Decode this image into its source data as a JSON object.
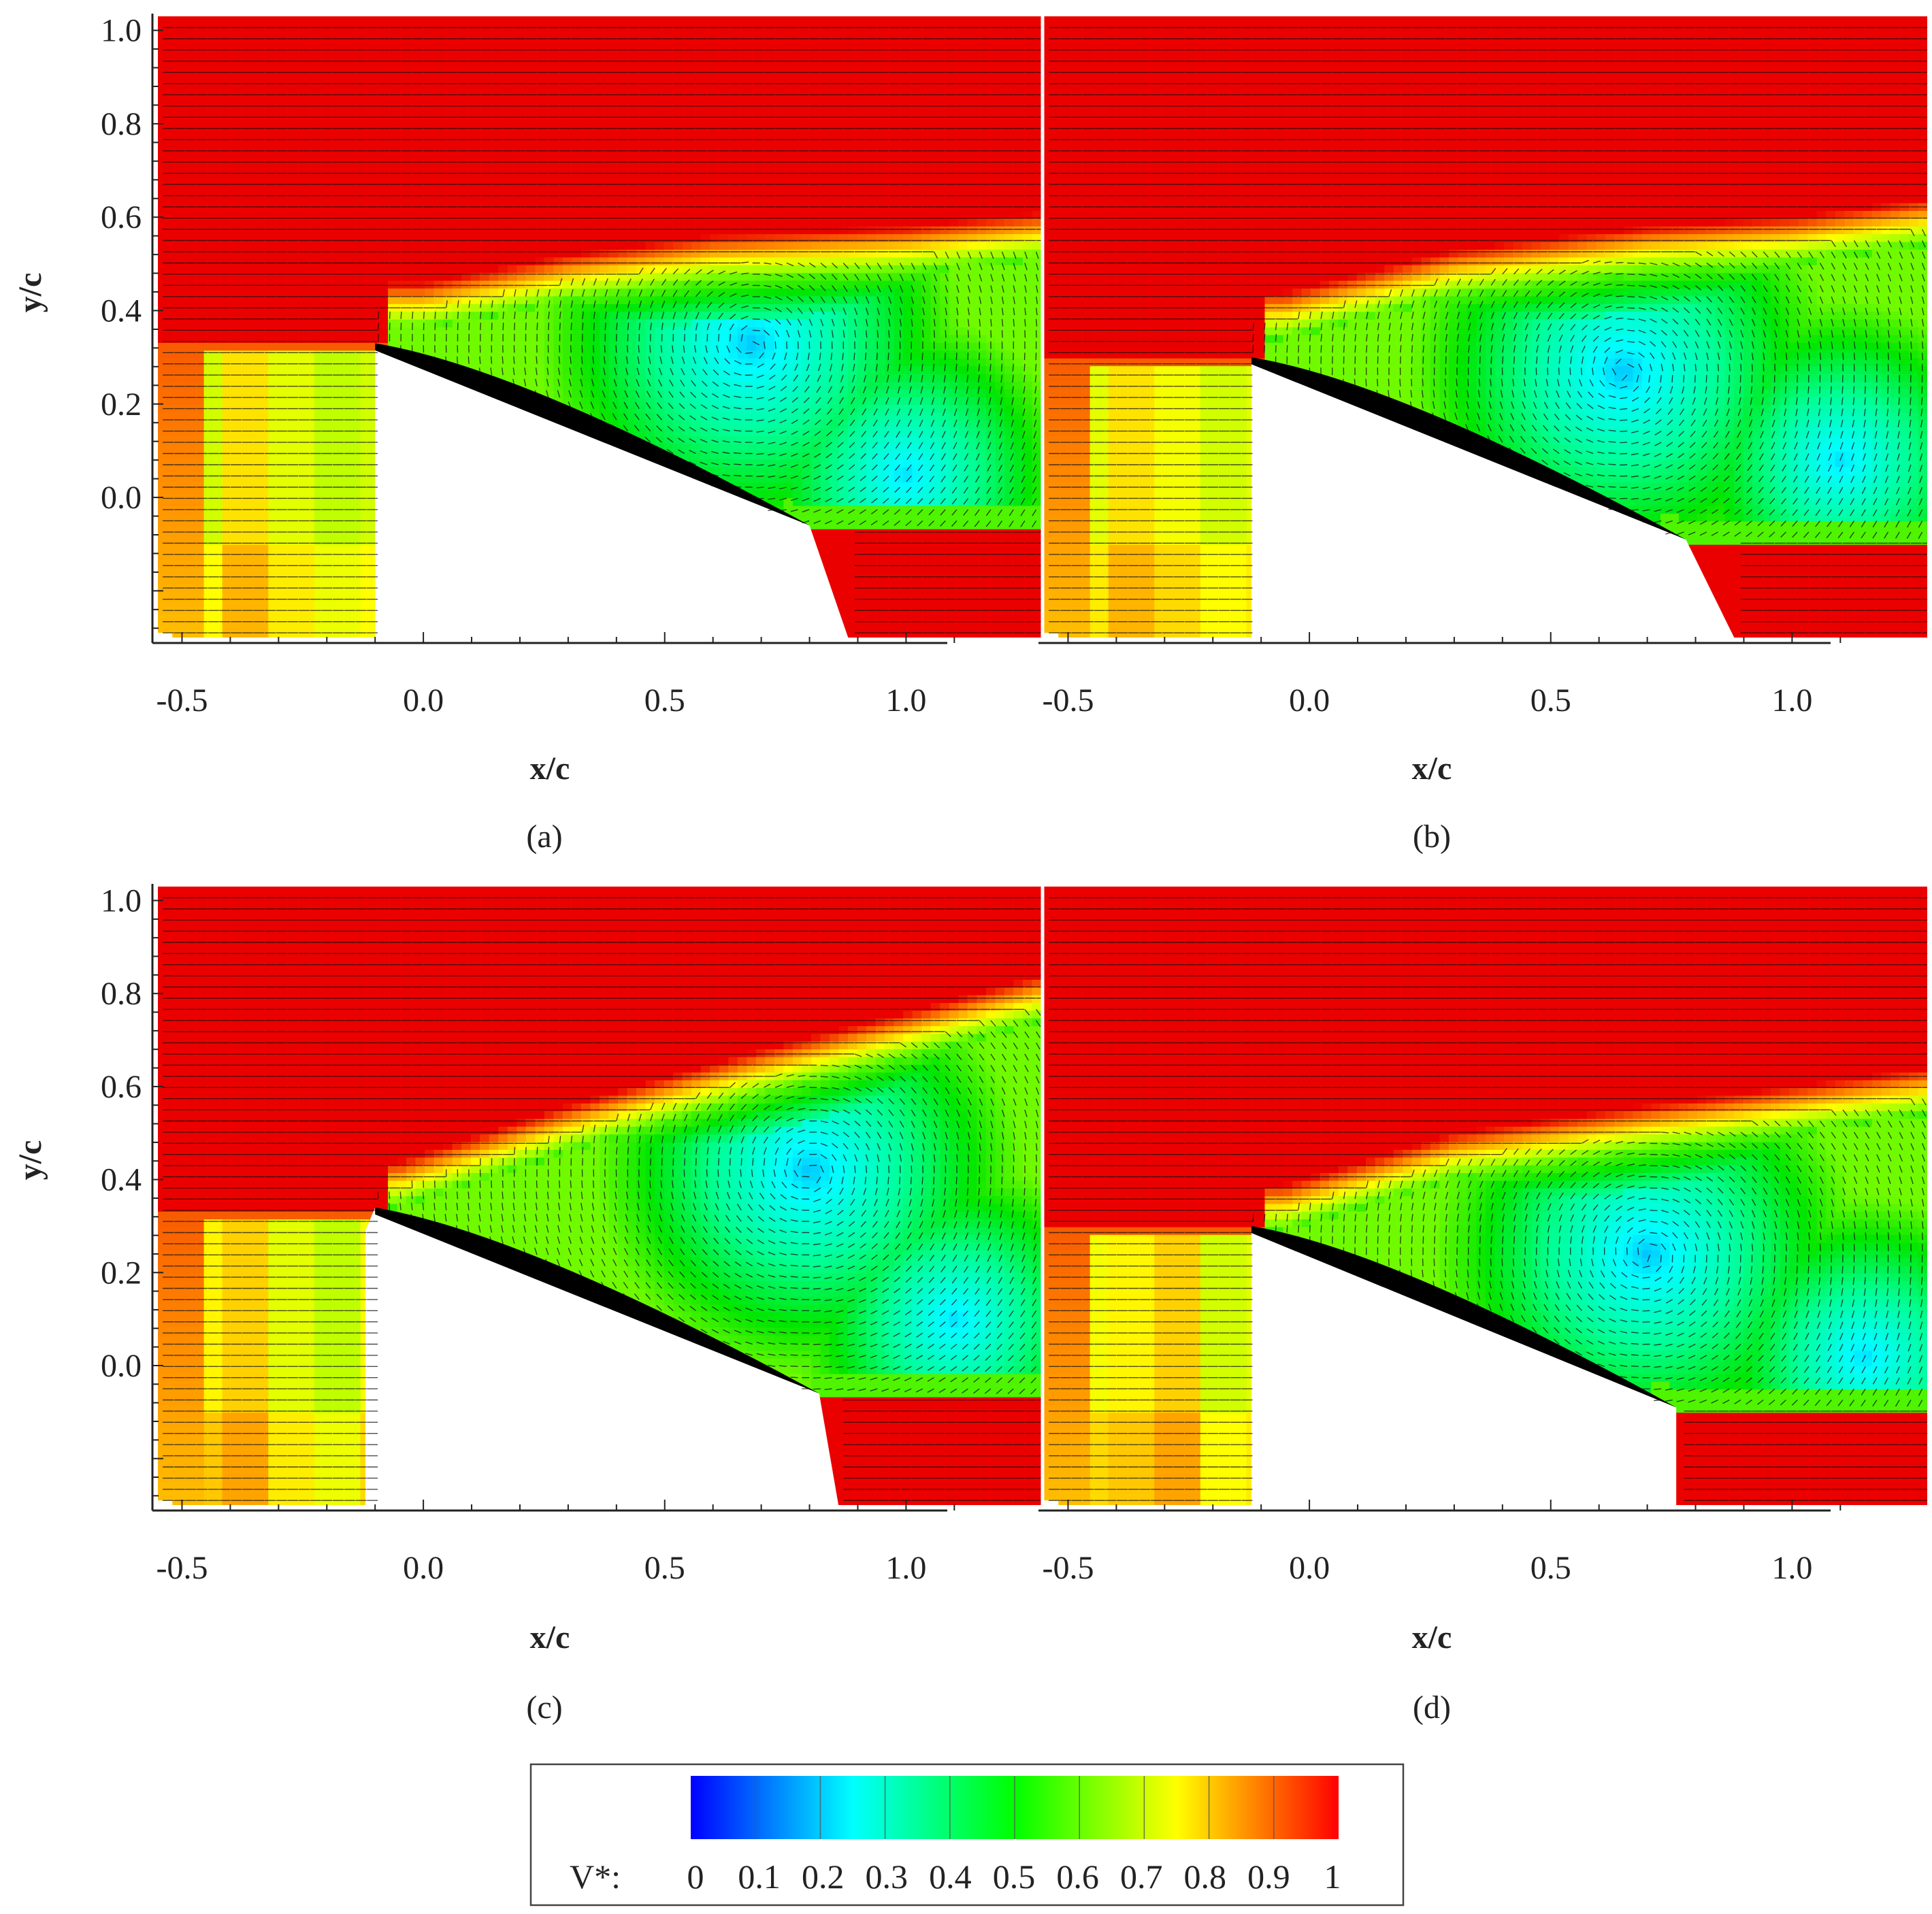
{
  "figure": {
    "panels": [
      {
        "id": "a",
        "caption": "(a)"
      },
      {
        "id": "b",
        "caption": "(b)"
      },
      {
        "id": "c",
        "caption": "(c)"
      },
      {
        "id": "d",
        "caption": "(d)"
      }
    ]
  },
  "chart_data": [
    {
      "type": "heatmap",
      "panel": "a",
      "caption": "(a)",
      "xlabel": "x/c",
      "ylabel": "y/c",
      "xlim": [
        -0.55,
        1.28
      ],
      "ylim": [
        -0.3,
        1.03
      ],
      "xticks": [
        "-0.5",
        "0.0",
        "0.5",
        "1.0"
      ],
      "xtick_values": [
        -0.5,
        0.0,
        0.5,
        1.0
      ],
      "yticks": [
        "0.0",
        "0.2",
        "0.4",
        "0.6",
        "0.8",
        "1.0"
      ],
      "ytick_values": [
        0.0,
        0.2,
        0.4,
        0.6,
        0.8,
        1.0
      ],
      "show_ylabel": true,
      "airfoil": {
        "leading_edge": [
          -0.1,
          0.33
        ],
        "trailing_edge": [
          0.8,
          -0.06
        ]
      },
      "wake_top": [
        [
          0.0,
          0.4
        ],
        [
          0.3,
          0.46
        ],
        [
          0.6,
          0.5
        ],
        [
          1.0,
          0.52
        ],
        [
          1.28,
          0.55
        ]
      ],
      "vortex_centers": [
        [
          0.68,
          0.33
        ],
        [
          1.0,
          0.05
        ]
      ],
      "shadow_front": -0.1,
      "trailing_shadow_x": 0.88,
      "bottom_band": [
        0.7,
        0.78,
        0.72,
        0.68,
        0.7
      ]
    },
    {
      "type": "heatmap",
      "panel": "b",
      "caption": "(b)",
      "xlabel": "x/c",
      "ylabel": "y/c",
      "xlim": [
        -0.55,
        1.28
      ],
      "ylim": [
        -0.3,
        1.03
      ],
      "xticks": [
        "-0.5",
        "0.0",
        "0.5",
        "1.0"
      ],
      "xtick_values": [
        -0.5,
        0.0,
        0.5,
        1.0
      ],
      "yticks": [],
      "ytick_values": [
        0.0,
        0.2,
        0.4,
        0.6,
        0.8,
        1.0
      ],
      "show_ylabel": false,
      "airfoil": {
        "leading_edge": [
          -0.12,
          0.3
        ],
        "trailing_edge": [
          0.78,
          -0.09
        ]
      },
      "wake_top": [
        [
          -0.05,
          0.38
        ],
        [
          0.3,
          0.47
        ],
        [
          0.7,
          0.52
        ],
        [
          1.0,
          0.54
        ],
        [
          1.28,
          0.58
        ]
      ],
      "vortex_centers": [
        [
          0.65,
          0.27
        ],
        [
          1.1,
          0.08
        ]
      ],
      "shadow_front": -0.12,
      "trailing_shadow_x": 0.88,
      "bottom_band": [
        0.72,
        0.78,
        0.74,
        0.7,
        0.72
      ]
    },
    {
      "type": "heatmap",
      "panel": "c",
      "caption": "(c)",
      "xlabel": "x/c",
      "ylabel": "y/c",
      "xlim": [
        -0.55,
        1.28
      ],
      "ylim": [
        -0.3,
        1.03
      ],
      "xticks": [
        "-0.5",
        "0.0",
        "0.5",
        "1.0"
      ],
      "xtick_values": [
        -0.5,
        0.0,
        0.5,
        1.0
      ],
      "yticks": [
        "0.0",
        "0.2",
        "0.4",
        "0.6",
        "0.8",
        "1.0"
      ],
      "ytick_values": [
        0.0,
        0.2,
        0.4,
        0.6,
        0.8,
        1.0
      ],
      "show_ylabel": true,
      "airfoil": {
        "leading_edge": [
          -0.1,
          0.34
        ],
        "trailing_edge": [
          0.82,
          -0.06
        ]
      },
      "wake_top": [
        [
          -0.05,
          0.38
        ],
        [
          0.3,
          0.5
        ],
        [
          0.7,
          0.62
        ],
        [
          1.0,
          0.7
        ],
        [
          1.28,
          0.78
        ]
      ],
      "vortex_centers": [
        [
          0.8,
          0.42
        ],
        [
          1.1,
          0.1
        ]
      ],
      "shadow_front": -0.12,
      "trailing_shadow_x": 0.86,
      "bottom_band": [
        0.76,
        0.8,
        0.72,
        0.68,
        0.74
      ]
    },
    {
      "type": "heatmap",
      "panel": "d",
      "caption": "(d)",
      "xlabel": "x/c",
      "ylabel": "y/c",
      "xlim": [
        -0.55,
        1.28
      ],
      "ylim": [
        -0.3,
        1.03
      ],
      "xticks": [
        "-0.5",
        "0.0",
        "0.5",
        "1.0"
      ],
      "xtick_values": [
        -0.5,
        0.0,
        0.5,
        1.0
      ],
      "yticks": [],
      "ytick_values": [
        0.0,
        0.2,
        0.4,
        0.6,
        0.8,
        1.0
      ],
      "show_ylabel": false,
      "airfoil": {
        "leading_edge": [
          -0.12,
          0.3
        ],
        "trailing_edge": [
          0.76,
          -0.09
        ]
      },
      "wake_top": [
        [
          -0.05,
          0.33
        ],
        [
          0.3,
          0.44
        ],
        [
          0.7,
          0.5
        ],
        [
          1.0,
          0.54
        ],
        [
          1.28,
          0.58
        ]
      ],
      "vortex_centers": [
        [
          0.7,
          0.24
        ],
        [
          1.15,
          0.02
        ]
      ],
      "shadow_front": -0.12,
      "trailing_shadow_x": 0.76,
      "bottom_band": [
        0.74,
        0.76,
        0.8,
        0.7,
        0.72
      ]
    }
  ],
  "colorbar": {
    "label": "V*:",
    "ticks": [
      "0",
      "0.1",
      "0.2",
      "0.3",
      "0.4",
      "0.5",
      "0.6",
      "0.7",
      "0.8",
      "0.9",
      "1"
    ],
    "range": [
      0,
      1
    ],
    "colors": [
      "#0000ff",
      "#0080ff",
      "#00ffff",
      "#00ff80",
      "#00ff00",
      "#80ff00",
      "#ffff00",
      "#ff8000",
      "#ff0000"
    ]
  }
}
